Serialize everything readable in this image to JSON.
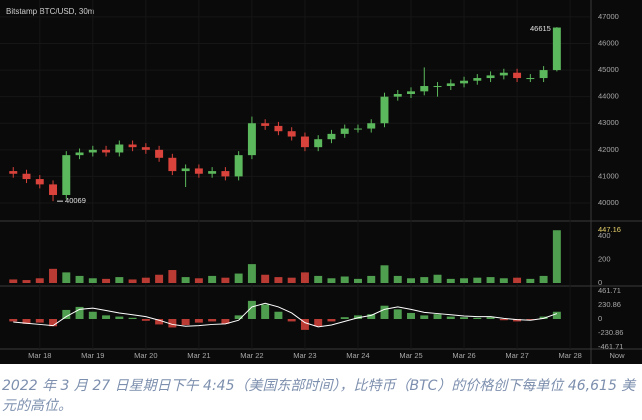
{
  "chart_data": {
    "type": "candlestick",
    "title": "Bitstamp BTC/USD, 30m",
    "now_label": "Now",
    "up_color": "#5cb85c",
    "down_color": "#d9433c",
    "grid": true,
    "open": [
      41200,
      41100,
      40900,
      40700,
      40300,
      41800,
      41900,
      42000,
      41900,
      42200,
      42100,
      42000,
      41700,
      41200,
      41300,
      41100,
      41200,
      41000,
      41800,
      43000,
      42900,
      42700,
      42500,
      42100,
      42400,
      42600,
      42800,
      42800,
      43000,
      44000,
      44100,
      44200,
      44400,
      44400,
      44500,
      44600,
      44700,
      44800,
      44900,
      44700,
      44700,
      45000
    ],
    "high": [
      41350,
      41250,
      41050,
      40850,
      41950,
      42050,
      42150,
      42150,
      42350,
      42350,
      42250,
      42150,
      41850,
      41450,
      41450,
      41350,
      41350,
      41950,
      43250,
      43150,
      43050,
      42850,
      42650,
      42550,
      42750,
      42950,
      42950,
      43150,
      44150,
      44250,
      44350,
      45100,
      44550,
      44650,
      44750,
      44850,
      44950,
      45050,
      45050,
      44850,
      45150,
      46615
    ],
    "low": [
      40950,
      40750,
      40550,
      40069,
      40150,
      41650,
      41750,
      41750,
      41750,
      41950,
      41850,
      41550,
      41050,
      40600,
      40950,
      40950,
      40850,
      40850,
      41650,
      42750,
      42550,
      42350,
      41950,
      41950,
      42250,
      42450,
      42650,
      42650,
      42850,
      43850,
      43950,
      44050,
      44000,
      44250,
      44350,
      44450,
      44550,
      44650,
      44550,
      44550,
      44550,
      44950
    ],
    "close": [
      41100,
      40900,
      40700,
      40300,
      41800,
      41900,
      42000,
      41900,
      42200,
      42100,
      42000,
      41700,
      41200,
      41300,
      41100,
      41200,
      41000,
      41800,
      43000,
      42900,
      42700,
      42500,
      42100,
      42400,
      42600,
      42800,
      42800,
      43000,
      44000,
      44100,
      44200,
      44400,
      44400,
      44500,
      44600,
      44700,
      44800,
      44900,
      44700,
      44700,
      45000,
      46600
    ],
    "xlim": [
      -1,
      43.5
    ],
    "xticks": [
      {
        "value": 2,
        "label": "Mar 18"
      },
      {
        "value": 6,
        "label": "Mar 19"
      },
      {
        "value": 10,
        "label": "Mar 20"
      },
      {
        "value": 14,
        "label": "Mar 21"
      },
      {
        "value": 18,
        "label": "Mar 22"
      },
      {
        "value": 22,
        "label": "Mar 23"
      },
      {
        "value": 26,
        "label": "Mar 24"
      },
      {
        "value": 30,
        "label": "Mar 25"
      },
      {
        "value": 34,
        "label": "Mar 26"
      },
      {
        "value": 38,
        "label": "Mar 27"
      },
      {
        "value": 42,
        "label": "Mar 28"
      }
    ],
    "ylim": [
      39360,
      47260
    ],
    "yticks": [
      40000,
      41000,
      42000,
      43000,
      44000,
      45000,
      46000,
      47000
    ],
    "volume": {
      "ylim": [
        0,
        500
      ],
      "yticks": [
        0,
        200,
        400
      ],
      "values": [
        30,
        25,
        40,
        120,
        90,
        60,
        40,
        35,
        50,
        30,
        45,
        70,
        110,
        50,
        40,
        60,
        45,
        80,
        160,
        70,
        50,
        45,
        90,
        60,
        40,
        55,
        35,
        60,
        150,
        60,
        40,
        50,
        70,
        35,
        40,
        45,
        50,
        40,
        45,
        35,
        60,
        447.16
      ]
    },
    "oscillator": {
      "ylim": [
        -480,
        480
      ],
      "yticks": [
        461.71,
        230.86,
        0,
        -230.86,
        -461.71
      ],
      "line_color": "#ffffff",
      "values": [
        -40,
        -80,
        -60,
        -120,
        150,
        200,
        120,
        60,
        40,
        20,
        -30,
        -90,
        -140,
        -100,
        -60,
        -40,
        -80,
        60,
        300,
        240,
        120,
        -40,
        -180,
        -120,
        -40,
        30,
        60,
        80,
        220,
        160,
        100,
        60,
        80,
        40,
        30,
        20,
        30,
        -20,
        -40,
        -20,
        40,
        120
      ],
      "line": [
        -50,
        -70,
        -90,
        -110,
        40,
        160,
        180,
        140,
        100,
        70,
        40,
        -20,
        -90,
        -120,
        -110,
        -90,
        -80,
        -20,
        200,
        260,
        200,
        100,
        -60,
        -130,
        -100,
        -40,
        20,
        60,
        160,
        200,
        160,
        110,
        90,
        70,
        50,
        40,
        40,
        10,
        -10,
        -20,
        10,
        90
      ]
    }
  },
  "caption": "2022 年 3 月 27 日星期日下午 4:45（美国东部时间），比特币（BTC）的价格创下每单位 46,615 美元的高位。"
}
